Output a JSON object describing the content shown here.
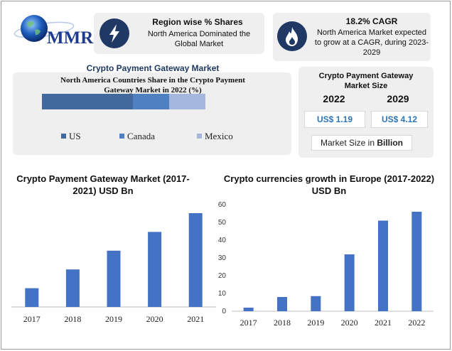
{
  "brand": {
    "name": "MMR"
  },
  "region_card": {
    "icon": "lightning-icon",
    "title": "Region wise % Shares",
    "text": "North America Dominated the Global Market"
  },
  "cagr_card": {
    "icon": "flame-icon",
    "title": "18.2% CAGR",
    "text": "North America Market expected to grow at a CAGR, during 2023-2029"
  },
  "share_panel": {
    "heading": "Crypto Payment Gateway Market",
    "title": "North America Countries Share in the Crypto Payment Gateway Market in 2022 (%)"
  },
  "size_panel": {
    "title": "Crypto Payment Gateway Market Size",
    "year_start": "2022",
    "year_end": "2029",
    "value_start": "US$ 1.19",
    "value_end": "US$ 4.12",
    "footer_prefix": "Market Size in ",
    "footer_bold": "Billion"
  },
  "colors": {
    "us": "#41699e",
    "canada": "#4f81c0",
    "mexico": "#a6b7dd",
    "bar": "#4472c4",
    "icon_bg": "#1f3864"
  },
  "chart_data": [
    {
      "type": "bar",
      "stacked": true,
      "title": "North America Countries Share in the Crypto Payment Gateway Market in 2022 (%)",
      "series": [
        {
          "name": "US",
          "values": [
            55
          ]
        },
        {
          "name": "Canada",
          "values": [
            22
          ]
        },
        {
          "name": "Mexico",
          "values": [
            22
          ]
        }
      ],
      "legend": "bottom"
    },
    {
      "type": "bar",
      "title": "Crypto Payment Gateway Market (2017-2021) USD Bn",
      "categories": [
        "2017",
        "2018",
        "2019",
        "2020",
        "2021"
      ],
      "values": [
        10,
        20,
        30,
        40,
        50
      ],
      "ylim": [
        0,
        50
      ],
      "grid": false
    },
    {
      "type": "bar",
      "title": "Crypto currencies growth in Europe (2017-2022) USD Bn",
      "categories": [
        "2017",
        "2018",
        "2019",
        "2020",
        "2021",
        "2022"
      ],
      "values": [
        2,
        8,
        8.5,
        32,
        51,
        56
      ],
      "yticks": [
        0,
        10,
        20,
        30,
        40,
        50,
        60
      ],
      "ylim": [
        0,
        60
      ],
      "grid": false
    }
  ]
}
